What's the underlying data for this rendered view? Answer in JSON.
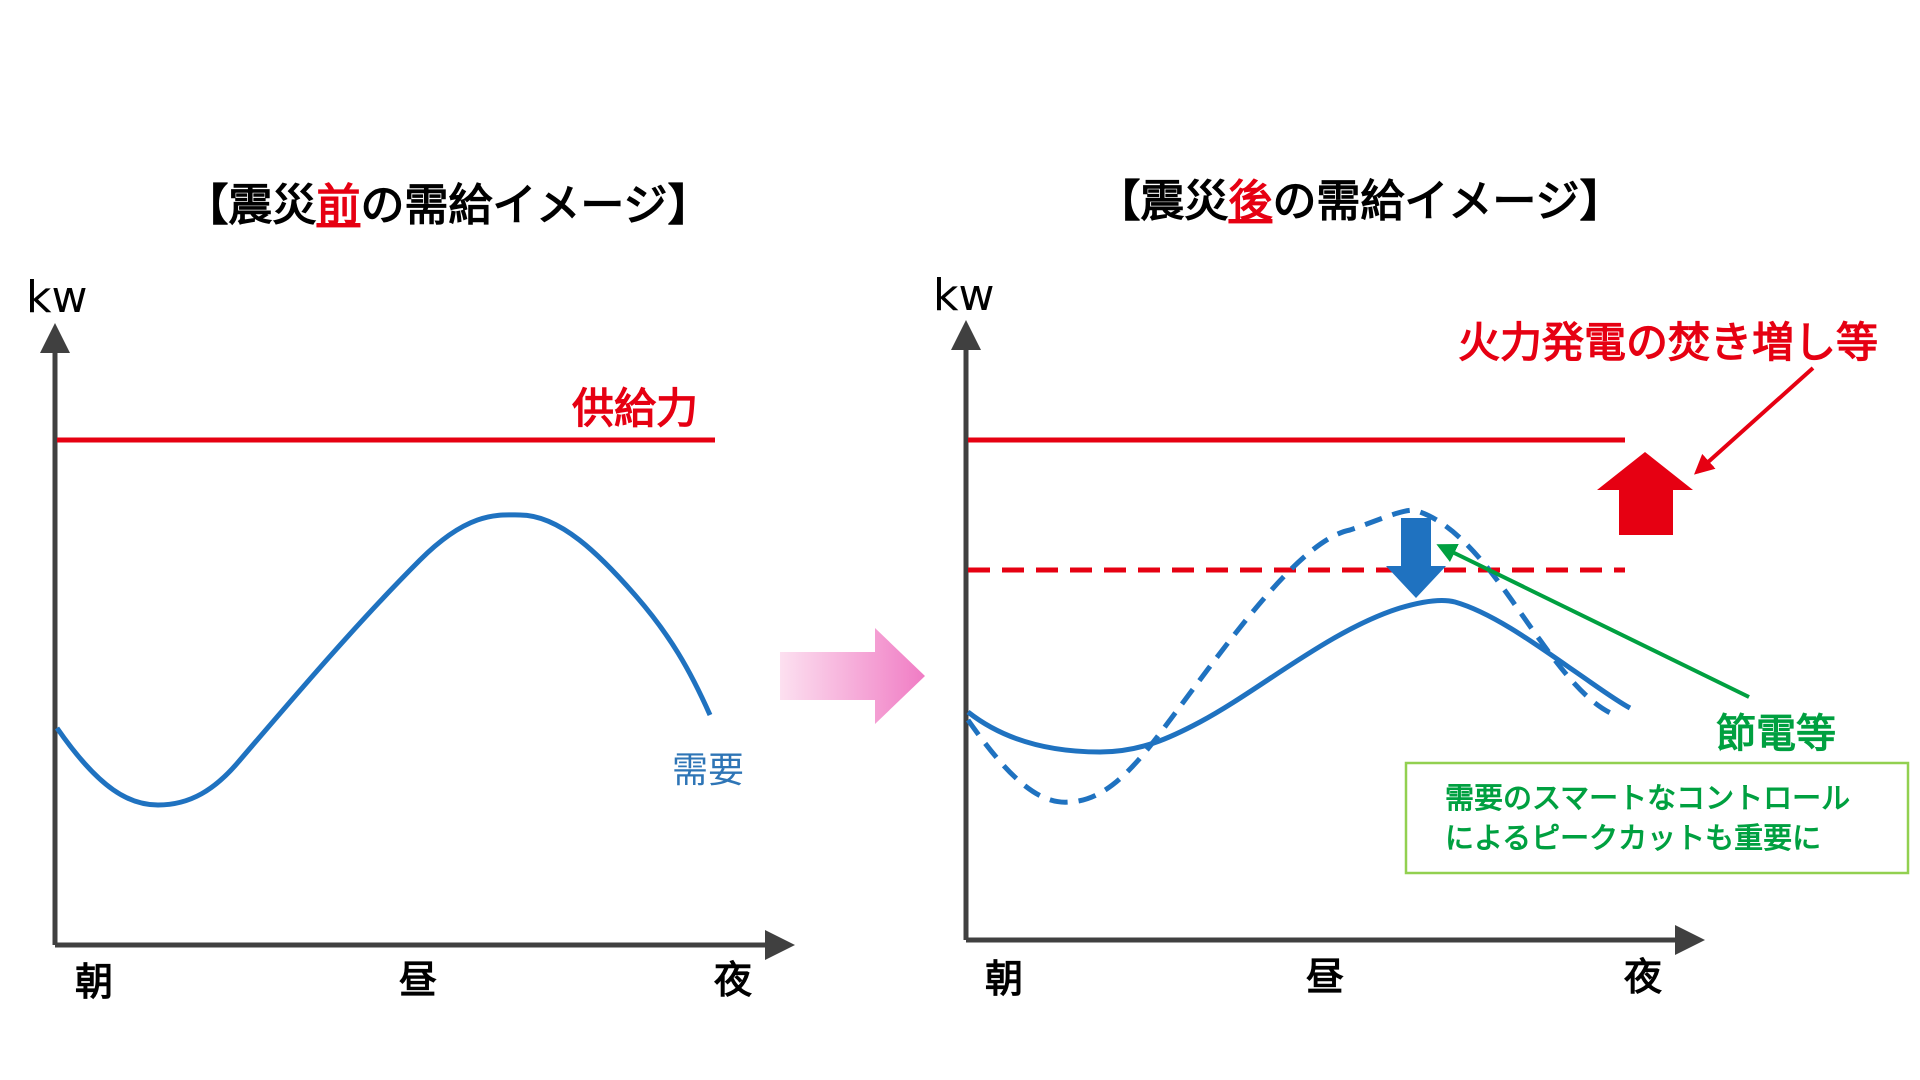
{
  "colors": {
    "supply": "#e60012",
    "demand": "#1f72c0",
    "saving": "#00a040",
    "transition_arrow": "#f7a8d4",
    "axis": "#404040"
  },
  "left_panel": {
    "title_prefix": "【震災",
    "title_emphasis": "前",
    "title_suffix": "の需給イメージ】",
    "y_axis_label": "kw",
    "x_ticks": [
      "朝",
      "昼",
      "夜"
    ],
    "supply_label": "供給力",
    "demand_label": "需要"
  },
  "right_panel": {
    "title_prefix": "【震災",
    "title_emphasis": "後",
    "title_suffix": "の需給イメージ】",
    "y_axis_label": "kw",
    "x_ticks": [
      "朝",
      "昼",
      "夜"
    ],
    "supply_increase_label": "火力発電の焚き増し等",
    "saving_label": "節電等",
    "note_lines": [
      "需要のスマートなコントロール",
      "によるピークカットも重要に"
    ]
  },
  "icons": {
    "transition": "right-arrow-icon",
    "supply_up": "up-arrow-icon",
    "demand_down": "down-arrow-icon"
  }
}
